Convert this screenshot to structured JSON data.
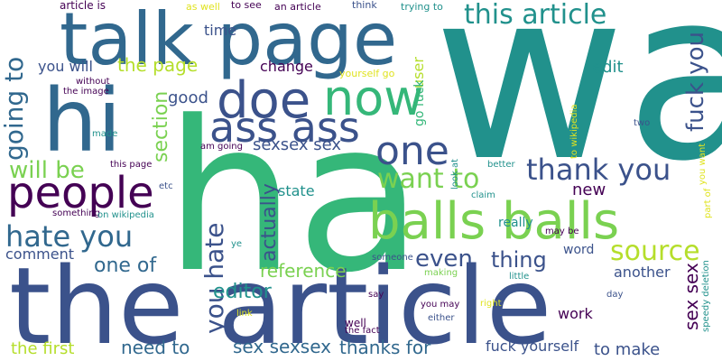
{
  "palette": {
    "dark_purple": "#440154",
    "indigo": "#3b528b",
    "blue": "#31688e",
    "teal": "#21918c",
    "green_teal": "#35b779",
    "emerald": "#1fa187",
    "light_green": "#7ad151",
    "yellow_green": "#b5de2b",
    "yellow": "#e0e320",
    "deep_violet": "#472d7b"
  },
  "words": [
    {
      "text": "wa",
      "color": "teal"
    },
    {
      "text": "ha",
      "color": "green_teal"
    },
    {
      "text": "the article",
      "color": "indigo"
    },
    {
      "text": "talk page",
      "color": "blue"
    },
    {
      "text": "hi",
      "color": "blue"
    },
    {
      "text": "balls balls",
      "color": "light_green"
    },
    {
      "text": "doe",
      "color": "indigo"
    },
    {
      "text": "now",
      "color": "green_teal"
    },
    {
      "text": "ass ass",
      "color": "indigo"
    },
    {
      "text": "people",
      "color": "dark_purple"
    },
    {
      "text": "this article",
      "color": "teal"
    },
    {
      "text": "one",
      "color": "indigo"
    },
    {
      "text": "thank you",
      "color": "indigo"
    },
    {
      "text": "hate you",
      "color": "blue"
    },
    {
      "text": "want to",
      "color": "light_green"
    },
    {
      "text": "source",
      "color": "yellow_green"
    },
    {
      "text": "you hate",
      "color": "indigo"
    },
    {
      "text": "going to",
      "color": "blue"
    },
    {
      "text": "fuck you",
      "color": "indigo"
    },
    {
      "text": "will be",
      "color": "light_green"
    },
    {
      "text": "the page",
      "color": "yellow_green"
    },
    {
      "text": "section",
      "color": "light_green"
    },
    {
      "text": "actually",
      "color": "indigo"
    },
    {
      "text": "reference",
      "color": "light_green"
    },
    {
      "text": "even",
      "color": "indigo"
    },
    {
      "text": "thing",
      "color": "indigo"
    },
    {
      "text": "one of",
      "color": "blue"
    },
    {
      "text": "editor",
      "color": "teal"
    },
    {
      "text": "sex sex",
      "color": "dark_purple"
    },
    {
      "text": "sex sexsex",
      "color": "blue"
    },
    {
      "text": "thanks for",
      "color": "blue"
    },
    {
      "text": "need to",
      "color": "blue"
    },
    {
      "text": "the first",
      "color": "yellow_green"
    },
    {
      "text": "to make",
      "color": "indigo"
    },
    {
      "text": "fuck yourself",
      "color": "indigo"
    },
    {
      "text": "sexsex sex",
      "color": "indigo"
    },
    {
      "text": "comment",
      "color": "indigo"
    },
    {
      "text": "new",
      "color": "dark_purple"
    },
    {
      "text": "edit",
      "color": "teal"
    },
    {
      "text": "another",
      "color": "indigo"
    },
    {
      "text": "work",
      "color": "dark_purple"
    },
    {
      "text": "state",
      "color": "teal"
    },
    {
      "text": "good",
      "color": "indigo"
    },
    {
      "text": "change",
      "color": "dark_purple"
    },
    {
      "text": "you will",
      "color": "indigo"
    },
    {
      "text": "time",
      "color": "indigo"
    },
    {
      "text": "user",
      "color": "yellow_green"
    },
    {
      "text": "go fuck",
      "color": "green_teal"
    },
    {
      "text": "really",
      "color": "teal"
    },
    {
      "text": "word",
      "color": "indigo"
    },
    {
      "text": "article is",
      "color": "dark_purple"
    },
    {
      "text": "as well",
      "color": "yellow"
    },
    {
      "text": "to see",
      "color": "dark_purple"
    },
    {
      "text": "an article",
      "color": "dark_purple"
    },
    {
      "text": "think",
      "color": "indigo"
    },
    {
      "text": "trying to",
      "color": "teal"
    },
    {
      "text": "yourself go",
      "color": "yellow"
    },
    {
      "text": "without",
      "color": "dark_purple"
    },
    {
      "text": "the image",
      "color": "dark_purple"
    },
    {
      "text": "made",
      "color": "teal"
    },
    {
      "text": "am going",
      "color": "dark_purple"
    },
    {
      "text": "this page",
      "color": "dark_purple"
    },
    {
      "text": "etc",
      "color": "indigo"
    },
    {
      "text": "something",
      "color": "dark_purple"
    },
    {
      "text": "on wikipedia",
      "color": "teal"
    },
    {
      "text": "ye",
      "color": "teal"
    },
    {
      "text": "to wikipedia",
      "color": "yellow"
    },
    {
      "text": "two",
      "color": "indigo"
    },
    {
      "text": "speedy deletion",
      "color": "teal"
    },
    {
      "text": "you want",
      "color": "yellow"
    },
    {
      "text": "part of",
      "color": "yellow"
    },
    {
      "text": "better",
      "color": "teal"
    },
    {
      "text": "look at",
      "color": "teal"
    },
    {
      "text": "claim",
      "color": "teal"
    },
    {
      "text": "may be",
      "color": "dark_purple"
    },
    {
      "text": "someone",
      "color": "indigo"
    },
    {
      "text": "making",
      "color": "light_green"
    },
    {
      "text": "little",
      "color": "teal"
    },
    {
      "text": "day",
      "color": "indigo"
    },
    {
      "text": "say",
      "color": "dark_purple"
    },
    {
      "text": "link",
      "color": "yellow"
    },
    {
      "text": "well",
      "color": "dark_purple"
    },
    {
      "text": "the fact",
      "color": "dark_purple"
    },
    {
      "text": "either",
      "color": "indigo"
    },
    {
      "text": "you may",
      "color": "dark_purple"
    },
    {
      "text": "right",
      "color": "yellow"
    }
  ]
}
